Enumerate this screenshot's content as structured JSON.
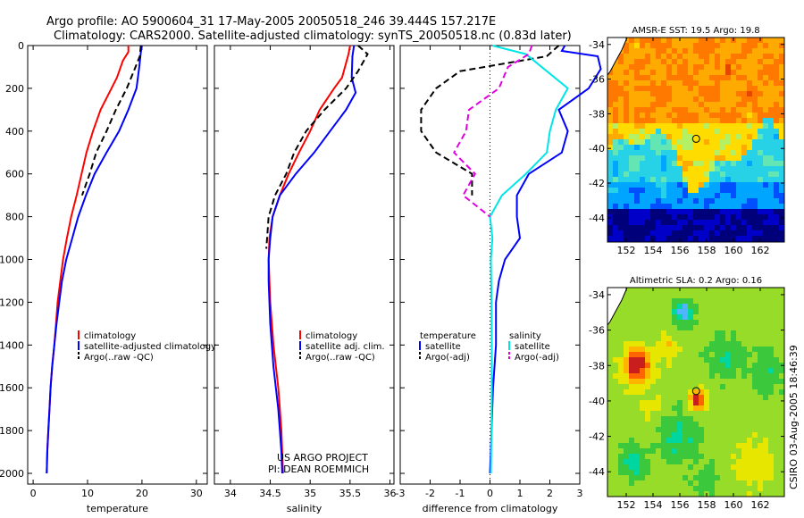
{
  "title": {
    "line1": "Argo profile: AO 5900604_31 17-May-2005 20050518_246 39.444S 157.217E",
    "line2": "Climatology: CARS2000. Satellite-adjusted climatology: synTS_20050518.nc (0.83d later)"
  },
  "credit": {
    "line1": "US ARGO PROJECT",
    "line2": "PI: DEAN ROEMMICH"
  },
  "side_stamp": "CSIRO 03-Aug-2005 18:46:39",
  "colors": {
    "climatology": "#ff0000",
    "satellite": "#0000ff",
    "argo": "#000000",
    "sal_satellite": "#00e5e5",
    "sal_argo": "#e100e1"
  },
  "chart_data": [
    {
      "type": "line",
      "xlabel": "temperature",
      "ylabel": "",
      "xlim": [
        -1,
        32
      ],
      "ylim": [
        2050,
        0
      ],
      "xticks": [
        0,
        10,
        20,
        30
      ],
      "yticks": [
        0,
        200,
        400,
        600,
        800,
        1000,
        1200,
        1400,
        1600,
        1800,
        2000
      ],
      "legend": [
        "climatology",
        "satellite-adjusted climatology",
        "Argo(..raw -QC)"
      ],
      "legend_position": "lower-right",
      "series": [
        {
          "name": "climatology",
          "style": "solid",
          "color": "#ff0000",
          "points": [
            [
              17.5,
              0
            ],
            [
              17.5,
              30
            ],
            [
              16.5,
              70
            ],
            [
              15.4,
              150
            ],
            [
              14.4,
              200
            ],
            [
              12.4,
              300
            ],
            [
              11,
              400
            ],
            [
              9.8,
              500
            ],
            [
              8.9,
              600
            ],
            [
              8,
              700
            ],
            [
              7,
              800
            ],
            [
              6.2,
              900
            ],
            [
              5.5,
              1000
            ],
            [
              5,
              1100
            ],
            [
              4.5,
              1200
            ],
            [
              4.2,
              1300
            ],
            [
              3.9,
              1400
            ],
            [
              3.5,
              1500
            ],
            [
              3.2,
              1600
            ],
            [
              3,
              1700
            ],
            [
              2.8,
              1800
            ],
            [
              2.6,
              1900
            ],
            [
              2.5,
              2000
            ]
          ]
        },
        {
          "name": "satellite-adjusted climatology",
          "style": "solid",
          "color": "#0000ff",
          "points": [
            [
              20,
              0
            ],
            [
              19.8,
              30
            ],
            [
              19.5,
              100
            ],
            [
              19,
              200
            ],
            [
              17.5,
              300
            ],
            [
              15.8,
              400
            ],
            [
              13.5,
              500
            ],
            [
              11.3,
              600
            ],
            [
              9.7,
              700
            ],
            [
              8.3,
              800
            ],
            [
              7.2,
              900
            ],
            [
              6.1,
              1000
            ],
            [
              5.3,
              1100
            ],
            [
              4.8,
              1200
            ],
            [
              4.3,
              1300
            ],
            [
              3.9,
              1400
            ],
            [
              3.5,
              1500
            ],
            [
              3.2,
              1600
            ],
            [
              3,
              1700
            ],
            [
              2.8,
              1800
            ],
            [
              2.6,
              1900
            ],
            [
              2.5,
              2000
            ]
          ]
        },
        {
          "name": "Argo(..raw -QC)",
          "style": "dashed",
          "color": "#000000",
          "points": [
            [
              19.8,
              0
            ],
            [
              19.6,
              50
            ],
            [
              18.5,
              120
            ],
            [
              17.2,
              200
            ],
            [
              15.2,
              300
            ],
            [
              13.5,
              400
            ],
            [
              11.6,
              500
            ],
            [
              10.4,
              600
            ],
            [
              9,
              700
            ]
          ]
        }
      ]
    },
    {
      "type": "line",
      "xlabel": "salinity",
      "ylabel": "",
      "xlim": [
        33.8,
        36.05
      ],
      "ylim": [
        2050,
        0
      ],
      "xticks": [
        34,
        34.5,
        35,
        35.5,
        36
      ],
      "xticklabels": [
        "34",
        "34.5",
        "35",
        "35.5",
        "36"
      ],
      "legend": [
        "climatology",
        "satellite adj. clim.",
        "Argo(..raw -QC)"
      ],
      "legend_position": "lower-right",
      "series": [
        {
          "name": "climatology",
          "style": "solid",
          "color": "#ff0000",
          "points": [
            [
              35.5,
              0
            ],
            [
              35.48,
              40
            ],
            [
              35.4,
              150
            ],
            [
              35.3,
              200
            ],
            [
              35.12,
              300
            ],
            [
              35,
              400
            ],
            [
              34.86,
              500
            ],
            [
              34.73,
              600
            ],
            [
              34.62,
              700
            ],
            [
              34.53,
              800
            ],
            [
              34.49,
              900
            ],
            [
              34.48,
              1000
            ],
            [
              34.49,
              1100
            ],
            [
              34.5,
              1200
            ],
            [
              34.52,
              1300
            ],
            [
              34.54,
              1400
            ],
            [
              34.57,
              1500
            ],
            [
              34.6,
              1600
            ],
            [
              34.62,
              1700
            ],
            [
              34.64,
              1800
            ],
            [
              34.65,
              1900
            ],
            [
              34.66,
              2000
            ]
          ]
        },
        {
          "name": "satellite adj. clim.",
          "style": "solid",
          "color": "#0000ff",
          "points": [
            [
              35.55,
              0
            ],
            [
              35.53,
              50
            ],
            [
              35.52,
              150
            ],
            [
              35.57,
              220
            ],
            [
              35.45,
              300
            ],
            [
              35.25,
              400
            ],
            [
              35.05,
              500
            ],
            [
              34.82,
              600
            ],
            [
              34.62,
              700
            ],
            [
              34.53,
              800
            ],
            [
              34.5,
              900
            ],
            [
              34.48,
              1000
            ],
            [
              34.48,
              1100
            ],
            [
              34.49,
              1200
            ],
            [
              34.5,
              1300
            ],
            [
              34.52,
              1400
            ],
            [
              34.54,
              1500
            ],
            [
              34.57,
              1600
            ],
            [
              34.6,
              1700
            ],
            [
              34.62,
              1800
            ],
            [
              34.64,
              1900
            ],
            [
              34.65,
              2000
            ]
          ]
        },
        {
          "name": "Argo(..raw -QC)",
          "style": "dashed",
          "color": "#000000",
          "points": [
            [
              35.6,
              0
            ],
            [
              35.72,
              40
            ],
            [
              35.6,
              120
            ],
            [
              35.45,
              200
            ],
            [
              35.18,
              300
            ],
            [
              34.95,
              400
            ],
            [
              34.8,
              500
            ],
            [
              34.7,
              600
            ],
            [
              34.56,
              700
            ],
            [
              34.48,
              800
            ],
            [
              34.46,
              900
            ],
            [
              34.45,
              950
            ]
          ]
        }
      ]
    },
    {
      "type": "line",
      "xlabel": "difference from climatology",
      "ylabel": "",
      "xlim": [
        -3,
        3
      ],
      "ylim": [
        2050,
        0
      ],
      "xticks": [
        -3,
        -2,
        -1,
        0,
        1,
        2,
        3
      ],
      "zero_line": "dotted",
      "legend": [
        "temperature",
        "satellite",
        "Argo(-adj)",
        "salinity",
        "satellite",
        "Argo(-adj)"
      ],
      "legend_position": "lower",
      "series": [
        {
          "name": "temperature satellite",
          "style": "solid",
          "color": "#0000ff",
          "points": [
            [
              2.5,
              0
            ],
            [
              2.4,
              25
            ],
            [
              3.6,
              50
            ],
            [
              3.7,
              110
            ],
            [
              3.3,
              200
            ],
            [
              2.3,
              300
            ],
            [
              2.6,
              400
            ],
            [
              2.4,
              500
            ],
            [
              1.3,
              600
            ],
            [
              0.9,
              700
            ],
            [
              0.9,
              800
            ],
            [
              1,
              900
            ],
            [
              0.5,
              1000
            ],
            [
              0.3,
              1100
            ],
            [
              0.2,
              1200
            ],
            [
              0.2,
              1400
            ],
            [
              0.1,
              1600
            ],
            [
              0.05,
              1800
            ],
            [
              0,
              2000
            ]
          ]
        },
        {
          "name": "temperature Argo(-adj)",
          "style": "dashed",
          "color": "#000000",
          "points": [
            [
              2.3,
              0
            ],
            [
              1.9,
              50
            ],
            [
              -1,
              120
            ],
            [
              -1.8,
              200
            ],
            [
              -2.3,
              300
            ],
            [
              -2.3,
              400
            ],
            [
              -1.8,
              500
            ],
            [
              -0.6,
              600
            ],
            [
              -0.6,
              700
            ]
          ]
        },
        {
          "name": "salinity satellite",
          "style": "solid",
          "color": "#00e5e5",
          "points": [
            [
              0.08,
              0
            ],
            [
              1.2,
              40
            ],
            [
              1.9,
              120
            ],
            [
              2.6,
              200
            ],
            [
              2.2,
              300
            ],
            [
              2,
              400
            ],
            [
              1.9,
              500
            ],
            [
              1.2,
              600
            ],
            [
              0.4,
              700
            ],
            [
              0,
              800
            ],
            [
              0.08,
              900
            ],
            [
              0.03,
              1000
            ],
            [
              0.05,
              1200
            ],
            [
              0.06,
              1400
            ],
            [
              0.06,
              1600
            ],
            [
              0.05,
              1800
            ],
            [
              0.03,
              2000
            ]
          ]
        },
        {
          "name": "salinity Argo(-adj)",
          "style": "dashed",
          "color": "#e100e1",
          "points": [
            [
              1.4,
              0
            ],
            [
              1.3,
              40
            ],
            [
              0.6,
              100
            ],
            [
              0.3,
              200
            ],
            [
              -0.7,
              300
            ],
            [
              -0.8,
              400
            ],
            [
              -1.2,
              500
            ],
            [
              -0.5,
              600
            ],
            [
              -0.9,
              700
            ],
            [
              0,
              800
            ]
          ]
        }
      ]
    },
    {
      "type": "heatmap",
      "title": "AMSR-E SST: 19.5 Argo: 19.8",
      "xlim": [
        150.6,
        163.8
      ],
      "ylim": [
        -45.4,
        -33.6
      ],
      "xticks": [
        152,
        154,
        156,
        158,
        160,
        162
      ],
      "yticks": [
        -34,
        -36,
        -38,
        -40,
        -42,
        -44
      ],
      "marker": [
        157.217,
        -39.444
      ],
      "palette": [
        "#00007a",
        "#0000c8",
        "#0050ff",
        "#00a5ff",
        "#28d2e6",
        "#64e6b4",
        "#b4f064",
        "#ffdc00",
        "#ffaa00",
        "#ff7800",
        "#e64600"
      ]
    },
    {
      "type": "heatmap",
      "title": "Altimetric SLA: 0.2 Argo: 0.16",
      "xlim": [
        150.6,
        163.8
      ],
      "ylim": [
        -45.4,
        -33.6
      ],
      "xticks": [
        152,
        154,
        156,
        158,
        160,
        162
      ],
      "yticks": [
        -34,
        -36,
        -38,
        -40,
        -42,
        -44
      ],
      "marker": [
        157.217,
        -39.444
      ],
      "palette": [
        "#0000a0",
        "#1e64ff",
        "#50b4ff",
        "#00d7a0",
        "#3cc83c",
        "#96dc28",
        "#e6e600",
        "#ffb400",
        "#ff6400",
        "#c81e1e",
        "#781414"
      ]
    }
  ]
}
